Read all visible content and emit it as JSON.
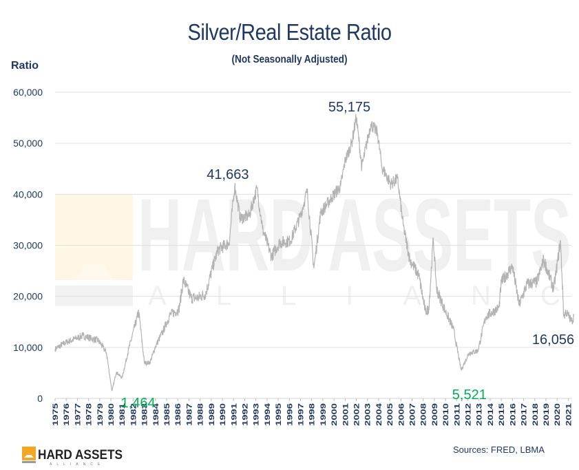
{
  "chart_data": {
    "type": "line",
    "title": "Silver/Real Estate Ratio",
    "subtitle": "(Not Seasonally Adjusted)",
    "ylabel": "Ratio",
    "xlabel": "",
    "ylim": [
      0,
      60000
    ],
    "xlim": [
      1975,
      2021.5
    ],
    "y_ticks": [
      "0",
      "10,000",
      "20,000",
      "30,000",
      "40,000",
      "50,000",
      "60,000"
    ],
    "x_ticks": [
      "1975",
      "1976",
      "1977",
      "1978",
      "1979",
      "1980",
      "1981",
      "1982",
      "1983",
      "1984",
      "1985",
      "1986",
      "1987",
      "1988",
      "1989",
      "1990",
      "1991",
      "1992",
      "1993",
      "1994",
      "1995",
      "1996",
      "1997",
      "1998",
      "1999",
      "2000",
      "2001",
      "2002",
      "2003",
      "2004",
      "2005",
      "2006",
      "2007",
      "2008",
      "2009",
      "2010",
      "2011",
      "2012",
      "2013",
      "2014",
      "2015",
      "2016",
      "2017",
      "2018",
      "2019",
      "2020",
      "2021"
    ],
    "grid": true,
    "line_color": "#b3b3b3",
    "series": [
      {
        "x": [
          1975.0,
          1976.0,
          1977.5,
          1978.9,
          1979.6,
          1980.1,
          1980.5,
          1981.0,
          1981.6,
          1982.5,
          1983.0,
          1983.5,
          1984.0,
          1984.7,
          1985.3,
          1986.1,
          1986.5,
          1987.2,
          1987.8,
          1988.5,
          1989.1,
          1989.6,
          1990.6,
          1991.1,
          1991.6,
          1992.4,
          1993.1,
          1993.6,
          1994.4,
          1995.1,
          1996.1,
          1997.0,
          1997.6,
          1998.2,
          1998.8,
          1999.8,
          2000.6,
          2001.0,
          2001.6,
          2002.0,
          2002.5,
          2003.3,
          2003.9,
          2004.3,
          2005.1,
          2005.7,
          2006.2,
          2006.8,
          2007.6,
          2008.2,
          2008.5,
          2008.9,
          2009.2,
          2010.0,
          2010.7,
          2011.4,
          2012.1,
          2012.9,
          2013.6,
          2014.8,
          2015.0,
          2016.0,
          2016.6,
          2017.3,
          2018.2,
          2018.8,
          2019.7,
          2020.3,
          2020.6,
          2020.8,
          2021.3,
          2021.5
        ],
        "values": [
          9700,
          11000,
          12300,
          11300,
          9000,
          1464,
          5200,
          4000,
          9700,
          17000,
          7000,
          7000,
          10200,
          13300,
          16400,
          17400,
          23200,
          19700,
          19700,
          20500,
          25500,
          29100,
          30500,
          41663,
          35300,
          35800,
          41200,
          33200,
          27800,
          30500,
          30900,
          35800,
          40700,
          25500,
          36300,
          39400,
          41600,
          46600,
          50100,
          55175,
          45300,
          53800,
          52000,
          45300,
          42000,
          43000,
          34000,
          27200,
          24100,
          17000,
          17500,
          31300,
          21400,
          17000,
          13700,
          5521,
          8900,
          9300,
          16000,
          17800,
          22800,
          25900,
          18300,
          22400,
          22800,
          27200,
          21400,
          30900,
          16000,
          17000,
          15100,
          16056
        ]
      }
    ],
    "annotations": [
      {
        "text": "55,175",
        "x": 2002.0,
        "y": 55175,
        "color": "#1f3864"
      },
      {
        "text": "41,663",
        "x": 1991.1,
        "y": 41663,
        "color": "#1f3864"
      },
      {
        "text": "1,464",
        "x": 1980.1,
        "y": 1464,
        "color": "#00b050"
      },
      {
        "text": "5,521",
        "x": 2011.4,
        "y": 5521,
        "color": "#00b050"
      },
      {
        "text": "16,056",
        "x": 2021.5,
        "y": 16056,
        "color": "#1f3864"
      }
    ]
  },
  "watermark": {
    "line1": "HARD ASSETS",
    "line2": "ALLIANCE"
  },
  "logo": {
    "line1": "HARD ASSETS",
    "line2": "ALLIANCE",
    "color": "#f5a623"
  },
  "source": "Sources: FRED, LBMA"
}
